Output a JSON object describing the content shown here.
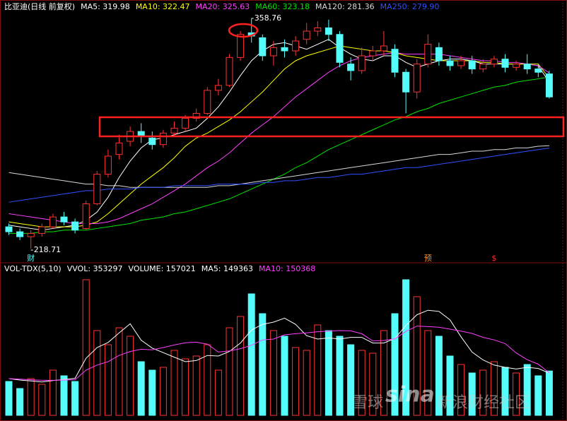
{
  "chart_data": [
    {
      "type": "candlestick",
      "title": "比亚迪(日线 前复权)",
      "ylim": [
        211,
        366.5
      ],
      "up_color": "#ff3232",
      "down_color": "#54fcfc",
      "open": [
        232,
        229,
        226,
        228,
        232,
        238,
        235,
        231,
        246,
        264,
        276,
        284,
        290,
        286,
        282,
        289,
        292,
        298,
        301,
        315,
        318,
        335,
        350,
        347,
        336,
        341,
        339,
        346,
        351,
        353,
        349,
        331,
        327,
        336,
        339,
        340,
        326,
        314,
        331,
        341,
        333,
        330,
        333,
        328,
        331,
        334,
        329,
        331,
        328,
        325
      ],
      "high": [
        234,
        231,
        230,
        234,
        240,
        241,
        237,
        248,
        266,
        279,
        288,
        293,
        295,
        290,
        291,
        296,
        300,
        304,
        317,
        322,
        337,
        351,
        358.76,
        349,
        345,
        346,
        348,
        356,
        357,
        358,
        351,
        335,
        341,
        342,
        351,
        343,
        328,
        334,
        349,
        344,
        336,
        336,
        336,
        334,
        336,
        337,
        333,
        337,
        331,
        327
      ],
      "low": [
        227,
        224,
        218.71,
        226,
        231,
        233,
        228,
        230,
        245,
        262,
        273,
        281,
        283,
        279,
        280,
        287,
        290,
        296,
        300,
        312,
        317,
        333,
        344,
        333,
        330,
        335,
        336,
        343,
        348,
        345,
        329,
        321,
        325,
        333,
        336,
        323,
        301,
        310,
        329,
        330,
        327,
        328,
        325,
        326,
        329,
        326,
        327,
        325,
        323,
        310
      ],
      "close": [
        229,
        226,
        228,
        232,
        238,
        235,
        230,
        246,
        264,
        275,
        283,
        290,
        287,
        282,
        289,
        292,
        298,
        301,
        315,
        318,
        335,
        349,
        348,
        336,
        341,
        339,
        345,
        351,
        353,
        349,
        332,
        327,
        336,
        339,
        342,
        326,
        314,
        331,
        343,
        333,
        330,
        333,
        328,
        331,
        334,
        329,
        331,
        328,
        326,
        311
      ],
      "high_label": "358.76",
      "low_label": "218.71",
      "event_markers": [
        {
          "label": "财",
          "index": 2,
          "color": "#54fcfc"
        },
        {
          "label": "预",
          "index": 38,
          "color": "#ff8c1a"
        },
        {
          "label": "$",
          "index": 44,
          "color": "#ff3232"
        }
      ],
      "series": [
        {
          "label": "MA5: 319.98",
          "color": "#ffffff",
          "values": [
            233,
            232,
            231,
            230,
            231,
            232,
            233,
            236,
            241,
            250,
            262,
            272,
            280,
            285,
            286,
            288,
            290,
            292,
            298,
            305,
            314,
            324,
            333,
            339,
            343,
            344,
            342,
            340,
            343,
            346,
            341,
            337,
            334,
            333,
            336,
            336,
            332,
            329,
            331,
            333,
            334,
            334,
            333,
            331,
            331,
            331,
            331,
            331,
            330,
            319.98
          ]
        },
        {
          "label": "MA10: 322.47",
          "color": "#ffff00",
          "values": [
            235,
            234,
            233,
            232,
            232,
            232,
            232,
            233,
            235,
            240,
            246,
            252,
            258,
            263,
            268,
            274,
            281,
            286,
            289,
            293,
            297,
            302,
            308,
            314,
            321,
            328,
            333,
            336,
            338,
            340,
            342,
            341,
            340,
            339,
            339,
            338,
            336,
            335,
            334,
            333,
            333,
            333,
            333,
            332,
            332,
            331,
            331,
            331,
            331,
            322.47
          ]
        },
        {
          "label": "MA20: 325.63",
          "color": "#ff40ff",
          "values": [
            240,
            239,
            238,
            237,
            236,
            235,
            234,
            234,
            234,
            235,
            237,
            240,
            243,
            246,
            250,
            254,
            258,
            263,
            268,
            272,
            277,
            283,
            289,
            294,
            299,
            305,
            311,
            316,
            321,
            326,
            330,
            333,
            335,
            336,
            337,
            338,
            337,
            337,
            337,
            337,
            336,
            335,
            334,
            333,
            333,
            332,
            332,
            331,
            330,
            325.63
          ]
        },
        {
          "label": "MA60: 323.18",
          "color": "#00e600",
          "values": [
            228,
            228,
            228,
            229,
            229,
            230,
            230,
            230,
            231,
            232,
            233,
            234,
            236,
            237,
            238,
            240,
            241,
            243,
            245,
            247,
            249,
            252,
            255,
            258,
            261,
            264,
            268,
            271,
            275,
            279,
            282,
            285,
            288,
            291,
            294,
            297,
            299,
            302,
            304,
            307,
            309,
            311,
            313,
            315,
            317,
            318,
            320,
            321,
            322,
            323.18
          ]
        },
        {
          "label": "MA120: 281.36",
          "color": "#d8d8d8",
          "values": [
            265,
            264,
            263,
            262,
            261,
            260,
            259,
            258,
            258,
            257,
            257,
            256,
            256,
            256,
            256,
            256,
            256,
            256,
            256,
            257,
            257,
            258,
            259,
            260,
            261,
            262,
            263,
            264,
            265,
            266,
            267,
            268,
            269,
            270,
            271,
            272,
            273,
            274,
            275,
            276,
            276,
            277,
            278,
            278,
            279,
            279,
            280,
            280,
            281,
            281.36
          ]
        },
        {
          "label": "MA250: 279.90",
          "color": "#3050ff",
          "values": [
            247,
            248,
            249,
            250,
            251,
            252,
            253,
            254,
            254,
            255,
            255,
            255,
            256,
            256,
            256,
            257,
            257,
            257,
            257,
            258,
            258,
            258,
            258,
            259,
            259,
            260,
            260,
            261,
            262,
            262,
            263,
            264,
            264,
            265,
            266,
            267,
            268,
            268,
            269,
            270,
            271,
            272,
            273,
            274,
            275,
            276,
            277,
            278,
            279,
            279.9
          ]
        }
      ]
    },
    {
      "type": "volume",
      "title": "VOL-TDX(5,10)",
      "vvol_label": "VVOL: 353297",
      "ylim": [
        0,
        500000
      ],
      "bar_label": "VOLUME: 157021",
      "values": [
        120000,
        95000,
        130000,
        110000,
        160000,
        140000,
        120000,
        480000,
        300000,
        250000,
        310000,
        280000,
        190000,
        160000,
        170000,
        230000,
        200000,
        210000,
        250000,
        160000,
        310000,
        350000,
        430000,
        360000,
        300000,
        280000,
        240000,
        230000,
        320000,
        300000,
        280000,
        250000,
        230000,
        220000,
        300000,
        360000,
        480000,
        420000,
        300000,
        280000,
        210000,
        180000,
        150000,
        160000,
        190000,
        170000,
        150000,
        180000,
        140000,
        157021
      ],
      "series": [
        {
          "label": "MA5: 149363",
          "color": "#ffffff",
          "values": [
            130000,
            125000,
            122000,
            118000,
            123000,
            127000,
            131000,
            202000,
            240000,
            258000,
            292000,
            324000,
            266000,
            238000,
            222000,
            206000,
            190000,
            194000,
            212000,
            210000,
            226000,
            256000,
            302000,
            322000,
            330000,
            344000,
            322000,
            282000,
            270000,
            274000,
            270000,
            276000,
            276000,
            256000,
            256000,
            272000,
            318000,
            356000,
            372000,
            368000,
            338000,
            278000,
            224000,
            196000,
            178000,
            170000,
            164000,
            170000,
            166000,
            149363
          ]
        },
        {
          "label": "MA10: 150368",
          "color": "#ff40ff",
          "values": [
            130000,
            128000,
            126000,
            124000,
            124000,
            125000,
            126000,
            160000,
            178000,
            190000,
            212000,
            226000,
            234000,
            232000,
            240000,
            249000,
            257000,
            259000,
            252000,
            224000,
            228000,
            236000,
            248000,
            267000,
            270000,
            285000,
            289000,
            292000,
            296000,
            298000,
            300000,
            299000,
            289000,
            263000,
            265000,
            271000,
            297000,
            316000,
            314000,
            312000,
            305000,
            298000,
            290000,
            276000,
            267000,
            254000,
            221000,
            197000,
            181000,
            150368
          ]
        }
      ]
    }
  ],
  "watermark": [
    "雪球",
    "sina",
    "新浪财经社区"
  ]
}
